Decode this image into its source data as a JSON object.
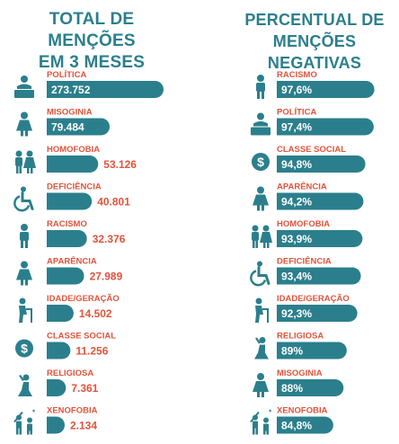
{
  "chart_data": [
    {
      "type": "bar",
      "title_lines": [
        "TOTAL DE MENÇÕES",
        "EM 3 MESES"
      ],
      "categories": [
        "POLÍTICA",
        "MISOGINIA",
        "HOMOFOBIA",
        "DEFICIÊNCIA",
        "RACISMO",
        "APARÊNCIA",
        "IDADE/GERAÇÃO",
        "CLASSE SOCIAL",
        "RELIGIOSA",
        "XENOFOBIA"
      ],
      "values": [
        273752,
        79484,
        53126,
        40801,
        32376,
        27989,
        14502,
        11256,
        7361,
        2134
      ],
      "value_labels": [
        "273.752",
        "79.484",
        "53.126",
        "40.801",
        "32.376",
        "27.989",
        "14.502",
        "11.256",
        "7.361",
        "2.134"
      ],
      "icons": [
        "speaker-icon",
        "woman-icon",
        "couple-icon",
        "wheelchair-icon",
        "man-icon",
        "woman-icon",
        "elderly-icon",
        "dollar-icon",
        "praying-icon",
        "xenophobia-icon"
      ],
      "orientation": "horizontal",
      "scale": "compressed",
      "colors": {
        "bar": "#2b7f8c",
        "category": "#e2533a",
        "value_inside": "#ffffff",
        "value_outside": "#e2533a",
        "icon": "#2b7f8c"
      }
    },
    {
      "type": "bar",
      "title_lines": [
        "PERCENTUAL DE",
        "MENÇÕES NEGATIVAS"
      ],
      "categories": [
        "RACISMO",
        "POLÍTICA",
        "CLASSE SOCIAL",
        "APARÊNCIA",
        "HOMOFOBIA",
        "DEFICIÊNCIA",
        "IDADE/GERAÇÃO",
        "RELIGIOSA",
        "MISOGINIA",
        "XENOFOBIA"
      ],
      "values": [
        97.6,
        97.4,
        94.8,
        94.2,
        93.9,
        93.4,
        92.3,
        89,
        88,
        84.8
      ],
      "value_labels": [
        "97,6%",
        "97,4%",
        "94,8%",
        "94,2%",
        "93,9%",
        "93,4%",
        "92,3%",
        "89%",
        "88%",
        "84,8%"
      ],
      "icons": [
        "man-icon",
        "speaker-icon",
        "dollar-icon",
        "woman-icon",
        "couple-icon",
        "wheelchair-icon",
        "elderly-icon",
        "praying-icon",
        "woman-icon",
        "xenophobia-icon"
      ],
      "orientation": "horizontal",
      "unit": "%",
      "colors": {
        "bar": "#2b7f8c",
        "category": "#e2533a",
        "value_inside": "#ffffff",
        "icon": "#2b7f8c"
      }
    }
  ]
}
